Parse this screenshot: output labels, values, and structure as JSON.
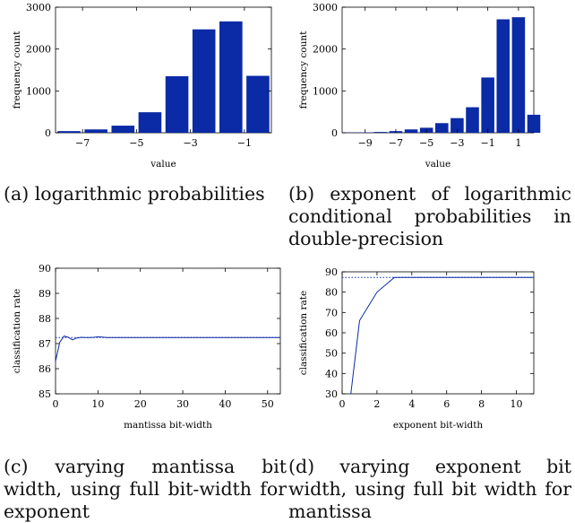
{
  "colors": {
    "bar": "#0a2aa6",
    "line": "#0a2aa6",
    "axis": "#000000"
  },
  "captions": {
    "a": "(a) logarithmic probabilities",
    "b": "(b) exponent of logarithmic conditional probabilities in double-precision",
    "c": "(c) varying mantissa bit width, using full bit-width for exponent",
    "d": "(d) varying exponent bit width, using full bit width for mantissa"
  },
  "chart_data": [
    {
      "id": "a",
      "type": "bar",
      "xlabel": "value",
      "ylabel": "frequency count",
      "xlim": [
        -8,
        0
      ],
      "ylim": [
        0,
        3000
      ],
      "xticks": [
        -7,
        -5,
        -3,
        -1
      ],
      "xtick_labels": [
        "−7",
        "−5",
        "−3",
        "−1"
      ],
      "yticks": [
        0,
        1000,
        2000,
        3000
      ],
      "ytick_labels": [
        "0",
        "1000",
        "2000",
        "3000"
      ],
      "bar_width": 0.85,
      "categories": [
        -7.5,
        -6.5,
        -5.5,
        -4.5,
        -3.5,
        -2.5,
        -1.5,
        -0.5
      ],
      "values": [
        40,
        80,
        170,
        490,
        1350,
        2470,
        2660,
        1360
      ]
    },
    {
      "id": "b",
      "type": "bar",
      "xlabel": "value",
      "ylabel": "frequency count",
      "xlim": [
        -10.5,
        2.0
      ],
      "ylim": [
        0,
        3000
      ],
      "xticks": [
        -9,
        -7,
        -5,
        -3,
        -1,
        1
      ],
      "xtick_labels": [
        "−9",
        "−7",
        "−5",
        "−3",
        "−1",
        "1"
      ],
      "yticks": [
        0,
        1000,
        2000,
        3000
      ],
      "ytick_labels": [
        "0",
        "1000",
        "2000",
        "3000"
      ],
      "bar_width": 0.85,
      "categories": [
        -10,
        -9,
        -8,
        -7,
        -6,
        -5,
        -4,
        -3,
        -2,
        -1,
        0,
        1,
        2
      ],
      "values": [
        5,
        10,
        20,
        40,
        80,
        120,
        230,
        350,
        610,
        1320,
        2710,
        2760,
        430
      ]
    },
    {
      "id": "c",
      "type": "line",
      "xlabel": "mantissa bit-width",
      "ylabel": "classification rate",
      "xlim": [
        0,
        53
      ],
      "ylim": [
        85,
        90
      ],
      "xticks": [
        0,
        10,
        20,
        30,
        40,
        50
      ],
      "xtick_labels": [
        "0",
        "10",
        "20",
        "30",
        "40",
        "50"
      ],
      "yticks": [
        85,
        86,
        87,
        88,
        89,
        90
      ],
      "ytick_labels": [
        "85",
        "86",
        "87",
        "88",
        "89",
        "90"
      ],
      "reference_line": 87.24,
      "series": [
        {
          "x": [
            0,
            1,
            2,
            3,
            4,
            5,
            6,
            7,
            8,
            9,
            10,
            11,
            12,
            13,
            15,
            20,
            25,
            30,
            35,
            40,
            45,
            50,
            53
          ],
          "values": [
            86.3,
            87.05,
            87.3,
            87.25,
            87.15,
            87.22,
            87.25,
            87.24,
            87.24,
            87.25,
            87.27,
            87.26,
            87.24,
            87.24,
            87.24,
            87.24,
            87.24,
            87.24,
            87.24,
            87.24,
            87.24,
            87.24,
            87.24
          ]
        }
      ]
    },
    {
      "id": "d",
      "type": "line",
      "xlabel": "exponent bit-width",
      "ylabel": "classification rate",
      "xlim": [
        0,
        11
      ],
      "ylim": [
        30,
        90
      ],
      "xticks": [
        0,
        2,
        4,
        6,
        8,
        10
      ],
      "xtick_labels": [
        "0",
        "2",
        "4",
        "6",
        "8",
        "10"
      ],
      "yticks": [
        30,
        40,
        50,
        60,
        70,
        80,
        90
      ],
      "ytick_labels": [
        "30",
        "40",
        "50",
        "60",
        "70",
        "80",
        "90"
      ],
      "reference_line": 87.24,
      "series": [
        {
          "x": [
            0.5,
            1,
            2,
            3,
            4,
            5,
            6,
            7,
            8,
            9,
            10,
            11
          ],
          "values": [
            30,
            66,
            80,
            87.24,
            87.24,
            87.24,
            87.24,
            87.24,
            87.24,
            87.24,
            87.24,
            87.24
          ]
        }
      ]
    }
  ]
}
